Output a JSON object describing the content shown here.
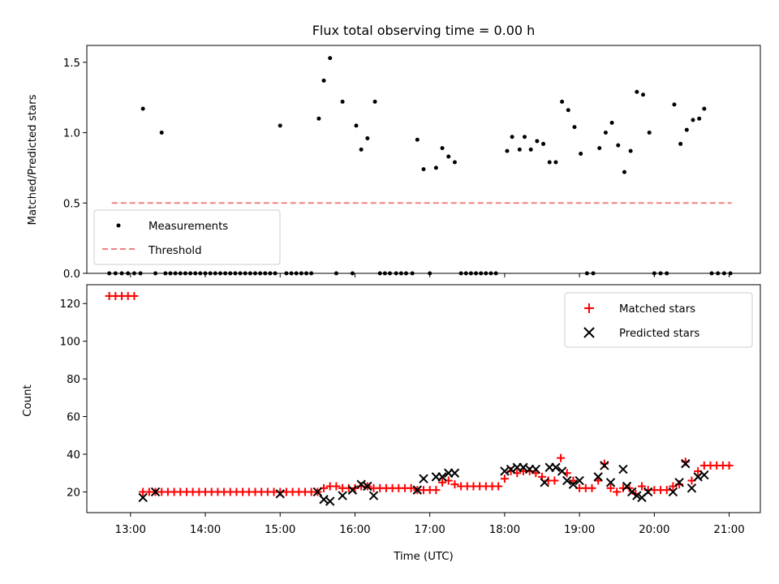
{
  "chart_data": [
    {
      "type": "scatter",
      "title": "Flux total observing time = 0.00 h",
      "xlabel": "",
      "ylabel": "Matched/Predicted stars",
      "xlim": [
        "12:25",
        "21:25"
      ],
      "ylim": [
        0,
        1.62
      ],
      "yticks": [
        0.0,
        0.5,
        1.0,
        1.5
      ],
      "ytick_labels": [
        "0.0",
        "0.5",
        "1.0",
        "1.5"
      ],
      "grid": false,
      "legend_position": "lower-left",
      "series": [
        {
          "name": "Measurements",
          "kind": "scatter",
          "color": "#000000",
          "points": [
            [
              "12:43",
              0
            ],
            [
              "12:48",
              0
            ],
            [
              "12:53",
              0
            ],
            [
              "12:58",
              0
            ],
            [
              "13:03",
              0
            ],
            [
              "13:08",
              0
            ],
            [
              "13:10",
              1.17
            ],
            [
              "13:20",
              0
            ],
            [
              "13:25",
              1.0
            ],
            [
              "13:28",
              0
            ],
            [
              "13:32",
              0
            ],
            [
              "13:36",
              0
            ],
            [
              "13:40",
              0
            ],
            [
              "13:44",
              0
            ],
            [
              "13:48",
              0
            ],
            [
              "13:52",
              0
            ],
            [
              "13:56",
              0
            ],
            [
              "14:00",
              0
            ],
            [
              "14:04",
              0
            ],
            [
              "14:08",
              0
            ],
            [
              "14:12",
              0
            ],
            [
              "14:16",
              0
            ],
            [
              "14:20",
              0
            ],
            [
              "14:24",
              0
            ],
            [
              "14:28",
              0
            ],
            [
              "14:32",
              0
            ],
            [
              "14:36",
              0
            ],
            [
              "14:40",
              0
            ],
            [
              "14:44",
              0
            ],
            [
              "14:48",
              0
            ],
            [
              "14:52",
              0
            ],
            [
              "14:56",
              0
            ],
            [
              "15:00",
              1.05
            ],
            [
              "15:05",
              0
            ],
            [
              "15:09",
              0
            ],
            [
              "15:13",
              0
            ],
            [
              "15:17",
              0
            ],
            [
              "15:21",
              0
            ],
            [
              "15:25",
              0
            ],
            [
              "15:31",
              1.1
            ],
            [
              "15:35",
              1.37
            ],
            [
              "15:40",
              1.53
            ],
            [
              "15:45",
              0
            ],
            [
              "15:50",
              1.22
            ],
            [
              "15:58",
              0
            ],
            [
              "16:01",
              1.05
            ],
            [
              "16:05",
              0.88
            ],
            [
              "16:10",
              0.96
            ],
            [
              "16:16",
              1.22
            ],
            [
              "16:20",
              0
            ],
            [
              "16:24",
              0
            ],
            [
              "16:28",
              0
            ],
            [
              "16:33",
              0
            ],
            [
              "16:37",
              0
            ],
            [
              "16:41",
              0
            ],
            [
              "16:46",
              0
            ],
            [
              "16:50",
              0.95
            ],
            [
              "16:55",
              0.74
            ],
            [
              "17:00",
              0
            ],
            [
              "17:05",
              0.75
            ],
            [
              "17:10",
              0.89
            ],
            [
              "17:15",
              0.83
            ],
            [
              "17:20",
              0.79
            ],
            [
              "17:25",
              0
            ],
            [
              "17:29",
              0
            ],
            [
              "17:33",
              0
            ],
            [
              "17:37",
              0
            ],
            [
              "17:41",
              0
            ],
            [
              "17:45",
              0
            ],
            [
              "17:49",
              0
            ],
            [
              "17:53",
              0
            ],
            [
              "18:02",
              0.87
            ],
            [
              "18:06",
              0.97
            ],
            [
              "18:12",
              0.88
            ],
            [
              "18:16",
              0.97
            ],
            [
              "18:21",
              0.88
            ],
            [
              "18:26",
              0.94
            ],
            [
              "18:31",
              0.92
            ],
            [
              "18:36",
              0.79
            ],
            [
              "18:41",
              0.79
            ],
            [
              "18:46",
              1.22
            ],
            [
              "18:51",
              1.16
            ],
            [
              "18:56",
              1.04
            ],
            [
              "19:01",
              0.85
            ],
            [
              "19:06",
              0
            ],
            [
              "19:11",
              0
            ],
            [
              "19:16",
              0.89
            ],
            [
              "19:21",
              1.0
            ],
            [
              "19:26",
              1.07
            ],
            [
              "19:31",
              0.91
            ],
            [
              "19:36",
              0.72
            ],
            [
              "19:41",
              0.87
            ],
            [
              "19:46",
              1.29
            ],
            [
              "19:51",
              1.27
            ],
            [
              "19:56",
              1.0
            ],
            [
              "20:00",
              0
            ],
            [
              "20:05",
              0
            ],
            [
              "20:10",
              0
            ],
            [
              "20:16",
              1.2
            ],
            [
              "20:21",
              0.92
            ],
            [
              "20:26",
              1.02
            ],
            [
              "20:31",
              1.09
            ],
            [
              "20:36",
              1.1
            ],
            [
              "20:40",
              1.17
            ],
            [
              "20:46",
              0
            ],
            [
              "20:51",
              0
            ],
            [
              "20:56",
              0
            ],
            [
              "21:01",
              0
            ]
          ]
        },
        {
          "name": "Threshold",
          "kind": "dashed-line",
          "color": "#f08080",
          "points": [
            [
              "12:45",
              0.5
            ],
            [
              "21:02",
              0.5
            ]
          ]
        }
      ]
    },
    {
      "type": "scatter",
      "title": "",
      "xlabel": "Time (UTC)",
      "ylabel": "Count",
      "xlim": [
        "12:25",
        "21:25"
      ],
      "ylim": [
        9,
        130
      ],
      "yticks": [
        20,
        40,
        60,
        80,
        100,
        120
      ],
      "ytick_labels": [
        "20",
        "40",
        "60",
        "80",
        "100",
        "120"
      ],
      "xticks": [
        "13:00",
        "14:00",
        "15:00",
        "16:00",
        "17:00",
        "18:00",
        "19:00",
        "20:00",
        "21:00"
      ],
      "grid": false,
      "legend_position": "upper-right",
      "series": [
        {
          "name": "Matched stars",
          "marker": "plus",
          "color": "#ff0000",
          "points": [
            [
              "12:43",
              124
            ],
            [
              "12:48",
              124
            ],
            [
              "12:53",
              124
            ],
            [
              "12:58",
              124
            ],
            [
              "13:03",
              124
            ],
            [
              "13:10",
              20
            ],
            [
              "13:15",
              20
            ],
            [
              "13:20",
              20
            ],
            [
              "13:25",
              20
            ],
            [
              "13:30",
              20
            ],
            [
              "13:35",
              20
            ],
            [
              "13:40",
              20
            ],
            [
              "13:45",
              20
            ],
            [
              "13:50",
              20
            ],
            [
              "13:55",
              20
            ],
            [
              "14:00",
              20
            ],
            [
              "14:05",
              20
            ],
            [
              "14:10",
              20
            ],
            [
              "14:15",
              20
            ],
            [
              "14:20",
              20
            ],
            [
              "14:25",
              20
            ],
            [
              "14:30",
              20
            ],
            [
              "14:35",
              20
            ],
            [
              "14:40",
              20
            ],
            [
              "14:45",
              20
            ],
            [
              "14:50",
              20
            ],
            [
              "14:55",
              20
            ],
            [
              "15:00",
              20
            ],
            [
              "15:05",
              20
            ],
            [
              "15:10",
              20
            ],
            [
              "15:15",
              20
            ],
            [
              "15:20",
              20
            ],
            [
              "15:25",
              20
            ],
            [
              "15:30",
              20
            ],
            [
              "15:35",
              22
            ],
            [
              "15:40",
              23
            ],
            [
              "15:45",
              23
            ],
            [
              "15:50",
              22
            ],
            [
              "15:55",
              22
            ],
            [
              "16:00",
              22
            ],
            [
              "16:05",
              23
            ],
            [
              "16:10",
              23
            ],
            [
              "16:15",
              22
            ],
            [
              "16:20",
              22
            ],
            [
              "16:25",
              22
            ],
            [
              "16:30",
              22
            ],
            [
              "16:35",
              22
            ],
            [
              "16:40",
              22
            ],
            [
              "16:45",
              22
            ],
            [
              "16:50",
              21
            ],
            [
              "16:55",
              21
            ],
            [
              "17:00",
              21
            ],
            [
              "17:05",
              21
            ],
            [
              "17:10",
              25
            ],
            [
              "17:15",
              26
            ],
            [
              "17:20",
              24
            ],
            [
              "17:25",
              23
            ],
            [
              "17:30",
              23
            ],
            [
              "17:35",
              23
            ],
            [
              "17:40",
              23
            ],
            [
              "17:45",
              23
            ],
            [
              "17:50",
              23
            ],
            [
              "17:55",
              23
            ],
            [
              "18:00",
              27
            ],
            [
              "18:05",
              31
            ],
            [
              "18:10",
              30
            ],
            [
              "18:15",
              31
            ],
            [
              "18:20",
              31
            ],
            [
              "18:25",
              30
            ],
            [
              "18:30",
              28
            ],
            [
              "18:35",
              26
            ],
            [
              "18:40",
              26
            ],
            [
              "18:45",
              38
            ],
            [
              "18:50",
              30
            ],
            [
              "18:55",
              26
            ],
            [
              "19:00",
              22
            ],
            [
              "19:05",
              22
            ],
            [
              "19:10",
              22
            ],
            [
              "19:15",
              26
            ],
            [
              "19:20",
              35
            ],
            [
              "19:25",
              22
            ],
            [
              "19:30",
              20
            ],
            [
              "19:35",
              22
            ],
            [
              "19:40",
              22
            ],
            [
              "19:45",
              19
            ],
            [
              "19:50",
              23
            ],
            [
              "19:55",
              21
            ],
            [
              "20:00",
              21
            ],
            [
              "20:05",
              21
            ],
            [
              "20:10",
              21
            ],
            [
              "20:15",
              23
            ],
            [
              "20:20",
              24
            ],
            [
              "20:25",
              36
            ],
            [
              "20:30",
              26
            ],
            [
              "20:35",
              31
            ],
            [
              "20:40",
              34
            ],
            [
              "20:45",
              34
            ],
            [
              "20:50",
              34
            ],
            [
              "20:55",
              34
            ],
            [
              "21:00",
              34
            ]
          ]
        },
        {
          "name": "Predicted stars",
          "marker": "x",
          "color": "#000000",
          "points": [
            [
              "13:10",
              17
            ],
            [
              "13:20",
              20
            ],
            [
              "15:00",
              19
            ],
            [
              "15:30",
              20
            ],
            [
              "15:35",
              16
            ],
            [
              "15:40",
              15
            ],
            [
              "15:50",
              18
            ],
            [
              "15:58",
              21
            ],
            [
              "16:05",
              24
            ],
            [
              "16:10",
              23
            ],
            [
              "16:15",
              18
            ],
            [
              "16:50",
              21
            ],
            [
              "16:55",
              27
            ],
            [
              "17:05",
              28
            ],
            [
              "17:10",
              28
            ],
            [
              "17:15",
              30
            ],
            [
              "17:20",
              30
            ],
            [
              "18:00",
              31
            ],
            [
              "18:05",
              32
            ],
            [
              "18:10",
              33
            ],
            [
              "18:15",
              33
            ],
            [
              "18:20",
              32
            ],
            [
              "18:25",
              32
            ],
            [
              "18:32",
              25
            ],
            [
              "18:36",
              33
            ],
            [
              "18:41",
              33
            ],
            [
              "18:46",
              31
            ],
            [
              "18:50",
              26
            ],
            [
              "18:55",
              24
            ],
            [
              "19:00",
              26
            ],
            [
              "19:15",
              28
            ],
            [
              "19:20",
              34
            ],
            [
              "19:25",
              25
            ],
            [
              "19:35",
              32
            ],
            [
              "19:38",
              23
            ],
            [
              "19:42",
              20
            ],
            [
              "19:46",
              18
            ],
            [
              "19:50",
              17
            ],
            [
              "19:55",
              20
            ],
            [
              "20:15",
              20
            ],
            [
              "20:20",
              25
            ],
            [
              "20:25",
              35
            ],
            [
              "20:30",
              22
            ],
            [
              "20:35",
              28
            ],
            [
              "20:40",
              29
            ]
          ]
        }
      ]
    }
  ]
}
